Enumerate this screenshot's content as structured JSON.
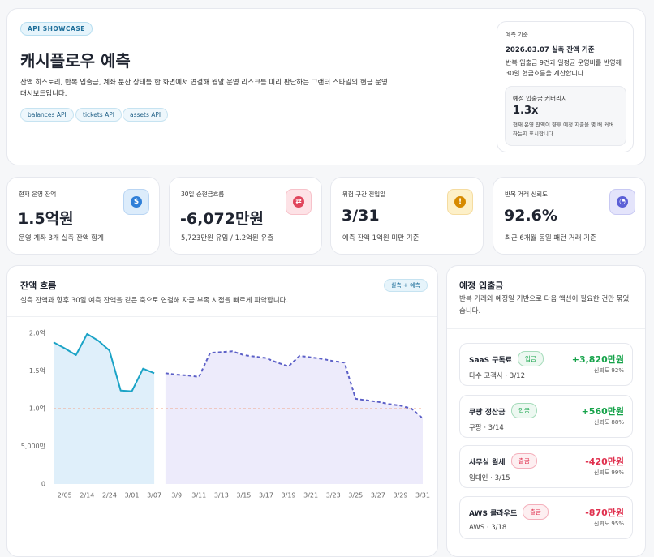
{
  "header": {
    "badge": "API SHOWCASE",
    "title": "캐시플로우 예측",
    "description": "잔액 히스토리, 반복 입출금, 계좌 분산 상태를 한 화면에서 연결해 월말 운영 리스크를 미리 판단하는 그랜터 스타일의 현금 운영 대시보드입니다.",
    "chips": [
      "balances API",
      "tickets API",
      "assets API"
    ],
    "basis": {
      "label": "예측 기준",
      "date": "2026.03.07 실측 잔액 기준",
      "text": "반복 입출금 9건과 일평균 운영비를 반영해 30일 현금흐름을 계산합니다.",
      "coverage": {
        "label": "예정 입출금 커버리지",
        "value": "1.3x",
        "text": "현재 운영 잔액이 향후 예정 지출을 몇 배 커버하는지 표시합니다."
      }
    }
  },
  "kpis": [
    {
      "label": "현재 운영 잔액",
      "value": "1.5억원",
      "sub": "운영 계좌 3개 실측 잔액 합계",
      "color": "#2f7fd8",
      "bg": "#dcecfb"
    },
    {
      "label": "30일 순현금흐름",
      "value": "-6,072만원",
      "sub": "5,723만원 유입 / 1.2억원 유출",
      "color": "#e0455c",
      "bg": "#fde2e6"
    },
    {
      "label": "위험 구간 진입일",
      "value": "3/31",
      "sub": "예측 잔액 1억원 미만 기준",
      "color": "#d68a00",
      "bg": "#fdf0c8"
    },
    {
      "label": "반복 거래 신뢰도",
      "value": "92.6%",
      "sub": "최근 6개월 동일 패턴 거래 기준",
      "color": "#5b5fd6",
      "bg": "#e4e4fb"
    }
  ],
  "chart_card": {
    "title": "잔액 흐름",
    "badge": "실측 + 예측",
    "subtitle": "실측 잔액과 향후 30일 예측 잔액을 같은 축으로 연결해 자금 부족 시점을 빠르게 파악합니다."
  },
  "chart_data": {
    "type": "line",
    "categories": [
      null,
      "2/05",
      null,
      "2/14",
      null,
      "2/24",
      null,
      "3/01",
      null,
      "3/07",
      null,
      "3/9",
      null,
      "3/11",
      null,
      "3/13",
      null,
      "3/15",
      null,
      "3/17",
      null,
      "3/19",
      null,
      "3/21",
      null,
      "3/23",
      null,
      "3/25",
      null,
      "3/27",
      null,
      "3/29",
      null,
      "3/31"
    ],
    "series": [
      {
        "color": "#1ba3c6",
        "fill": "#dcedf9",
        "dashed": false,
        "values": [
          18800,
          18000,
          17100,
          19900,
          19000,
          17700,
          12400,
          12300,
          15300,
          14700,
          null,
          null,
          null,
          null,
          null,
          null,
          null,
          null,
          null,
          null,
          null,
          null,
          null,
          null,
          null,
          null,
          null,
          null,
          null,
          null,
          null,
          null,
          null,
          null
        ]
      },
      {
        "color": "#5b5fc7",
        "fill": "#ebe9fb",
        "dashed": true,
        "values": [
          null,
          null,
          null,
          null,
          null,
          null,
          null,
          null,
          null,
          null,
          14700,
          14500,
          14400,
          14200,
          17400,
          17500,
          17600,
          17100,
          16900,
          16700,
          16100,
          15600,
          17000,
          16800,
          16600,
          16300,
          16100,
          11300,
          11100,
          10900,
          10600,
          10400,
          10000,
          8700
        ]
      }
    ],
    "ylim": [
      0,
      20000
    ],
    "yticks": [
      0,
      {
        "value": 5000,
        "label": "5,000만"
      },
      {
        "value": 10000,
        "label": "1.0억"
      },
      {
        "value": 15000,
        "label": "1.5억"
      },
      {
        "value": 20000,
        "label": "2.0억"
      }
    ],
    "grid": false,
    "reference_line": {
      "value": 10000,
      "color": "#f0a58a"
    }
  },
  "upcoming": {
    "title": "예정 입출금",
    "subtitle": "반복 거래와 예정일 기반으로 다음 액션이 필요한 건만 묶었습니다.",
    "items": [
      {
        "name": "SaaS 구독료",
        "tag": "입금",
        "meta": "다수 고객사 · 3/12",
        "amount": "+3,820만원",
        "confidence": "신뢰도 92%",
        "color": "#16a34a"
      },
      {
        "name": "쿠팡 정산금",
        "tag": "입금",
        "meta": "쿠팡 · 3/14",
        "amount": "+560만원",
        "confidence": "신뢰도 88%",
        "color": "#16a34a"
      },
      {
        "name": "사무실 월세",
        "tag": "출금",
        "meta": "임대인 · 3/15",
        "amount": "-420만원",
        "confidence": "신뢰도 99%",
        "color": "#e0304e"
      },
      {
        "name": "AWS 클라우드",
        "tag": "출금",
        "meta": "AWS · 3/18",
        "amount": "-870만원",
        "confidence": "신뢰도 95%",
        "color": "#e0304e"
      }
    ]
  }
}
